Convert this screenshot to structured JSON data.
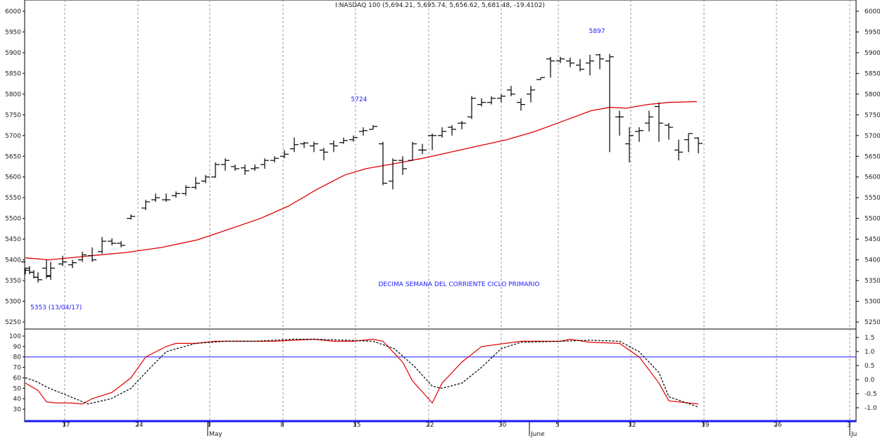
{
  "chart_data": [
    {
      "type": "ohlc",
      "title": "I:NASDAQ 100 (5,694.21, 5,695.74, 5,656.62, 5,681.48, -19.4102)",
      "ylim": [
        5200,
        6010
      ],
      "yticks": [
        5250,
        5300,
        5350,
        5400,
        5450,
        5500,
        5550,
        5600,
        5650,
        5700,
        5750,
        5800,
        5850,
        5900,
        5950,
        6000
      ],
      "grid": true,
      "colors": {
        "bars": "#000000",
        "moving_average": "#e00000"
      },
      "bars": [
        [
          36,
          5395,
          5380,
          5365,
          5375
        ],
        [
          42,
          5380,
          5385,
          5365,
          5370
        ],
        [
          48,
          5370,
          5375,
          5355,
          5358
        ],
        [
          54,
          5358,
          5370,
          5345,
          5352
        ],
        [
          66,
          5380,
          5400,
          5355,
          5360
        ],
        [
          72,
          5362,
          5395,
          5352,
          5380
        ],
        [
          89,
          5390,
          5410,
          5385,
          5395
        ],
        [
          103,
          5388,
          5400,
          5380,
          5393
        ],
        [
          117,
          5400,
          5420,
          5395,
          5412
        ],
        [
          131,
          5410,
          5430,
          5395,
          5400
        ],
        [
          145,
          5420,
          5455,
          5415,
          5445
        ],
        [
          159,
          5445,
          5452,
          5435,
          5440
        ],
        [
          172,
          5440,
          5445,
          5430,
          5435
        ],
        [
          186,
          5500,
          5510,
          5497,
          5505
        ],
        [
          207,
          5525,
          5545,
          5520,
          5540
        ],
        [
          221,
          5545,
          5560,
          5540,
          5550
        ],
        [
          236,
          5545,
          5560,
          5540,
          5545
        ],
        [
          250,
          5555,
          5565,
          5550,
          5560
        ],
        [
          264,
          5560,
          5580,
          5555,
          5575
        ],
        [
          278,
          5575,
          5600,
          5570,
          5585
        ],
        [
          292,
          5590,
          5605,
          5585,
          5600
        ],
        [
          306,
          5600,
          5635,
          5598,
          5630
        ],
        [
          320,
          5630,
          5645,
          5615,
          5640
        ],
        [
          334,
          5625,
          5630,
          5615,
          5620
        ],
        [
          348,
          5622,
          5630,
          5605,
          5615
        ],
        [
          362,
          5620,
          5630,
          5615,
          5622
        ],
        [
          376,
          5630,
          5645,
          5620,
          5640
        ],
        [
          390,
          5640,
          5650,
          5635,
          5645
        ],
        [
          404,
          5650,
          5665,
          5645,
          5655
        ],
        [
          418,
          5668,
          5695,
          5660,
          5678
        ],
        [
          432,
          5680,
          5685,
          5670,
          5682
        ],
        [
          446,
          5675,
          5685,
          5660,
          5680
        ],
        [
          460,
          5665,
          5670,
          5640,
          5660
        ],
        [
          474,
          5680,
          5688,
          5660,
          5675
        ],
        [
          488,
          5683,
          5695,
          5680,
          5688
        ],
        [
          502,
          5690,
          5700,
          5685,
          5695
        ],
        [
          516,
          5710,
          5720,
          5700,
          5712
        ],
        [
          530,
          5715,
          5725,
          5715,
          5722
        ],
        [
          544,
          5680,
          5685,
          5580,
          5585
        ],
        [
          558,
          5590,
          5645,
          5570,
          5640
        ],
        [
          572,
          5640,
          5650,
          5605,
          5620
        ],
        [
          586,
          5640,
          5685,
          5640,
          5680
        ],
        [
          600,
          5665,
          5680,
          5655,
          5665
        ],
        [
          614,
          5700,
          5705,
          5665,
          5700
        ],
        [
          628,
          5700,
          5720,
          5695,
          5710
        ],
        [
          642,
          5720,
          5725,
          5700,
          5715
        ],
        [
          656,
          5730,
          5735,
          5715,
          5730
        ],
        [
          670,
          5745,
          5795,
          5740,
          5790
        ],
        [
          684,
          5775,
          5790,
          5770,
          5780
        ],
        [
          698,
          5780,
          5795,
          5775,
          5790
        ],
        [
          712,
          5790,
          5800,
          5780,
          5795
        ],
        [
          726,
          5810,
          5820,
          5795,
          5800
        ],
        [
          740,
          5780,
          5790,
          5760,
          5775
        ],
        [
          754,
          5800,
          5820,
          5780,
          5810
        ],
        [
          768,
          5835,
          5840,
          5835,
          5840
        ],
        [
          782,
          5885,
          5890,
          5840,
          5880
        ],
        [
          796,
          5880,
          5890,
          5875,
          5885
        ],
        [
          810,
          5880,
          5888,
          5865,
          5875
        ],
        [
          824,
          5870,
          5885,
          5855,
          5860
        ],
        [
          838,
          5875,
          5895,
          5845,
          5880
        ],
        [
          852,
          5895,
          5897,
          5860,
          5885
        ],
        [
          866,
          5880,
          5897,
          5660,
          5890
        ],
        [
          880,
          5745,
          5760,
          5700,
          5745
        ],
        [
          894,
          5680,
          5720,
          5635,
          5700
        ],
        [
          908,
          5710,
          5720,
          5685,
          5712
        ],
        [
          922,
          5730,
          5760,
          5710,
          5745
        ],
        [
          936,
          5770,
          5780,
          5685,
          5730
        ],
        [
          950,
          5725,
          5730,
          5690,
          5720
        ],
        [
          964,
          5665,
          5690,
          5640,
          5660
        ],
        [
          978,
          5690,
          5705,
          5660,
          5705
        ],
        [
          992,
          5694,
          5696,
          5657,
          5681
        ]
      ],
      "moving_average": [
        [
          36,
          5405
        ],
        [
          70,
          5400
        ],
        [
          130,
          5410
        ],
        [
          180,
          5418
        ],
        [
          230,
          5430
        ],
        [
          280,
          5448
        ],
        [
          310,
          5465
        ],
        [
          370,
          5500
        ],
        [
          410,
          5530
        ],
        [
          450,
          5570
        ],
        [
          490,
          5605
        ],
        [
          520,
          5620
        ],
        [
          560,
          5632
        ],
        [
          600,
          5645
        ],
        [
          640,
          5660
        ],
        [
          680,
          5675
        ],
        [
          720,
          5690
        ],
        [
          760,
          5710
        ],
        [
          800,
          5735
        ],
        [
          840,
          5760
        ],
        [
          866,
          5768
        ],
        [
          890,
          5766
        ],
        [
          920,
          5775
        ],
        [
          950,
          5780
        ],
        [
          990,
          5782
        ]
      ]
    },
    {
      "type": "line",
      "ylim": [
        20,
        105
      ],
      "yticks_left": [
        30,
        40,
        50,
        60,
        70,
        80,
        90,
        100
      ],
      "yticks_right": [
        "1.5",
        "1.0",
        "0.5",
        "0.0",
        "-0.5",
        "-1.0"
      ],
      "yticks_right_values": [
        1.5,
        1.0,
        0.5,
        0.0,
        -0.5,
        -1.0
      ],
      "yticks_right_range": [
        -1.5,
        2.2
      ],
      "reference_levels": [
        100,
        80
      ],
      "series": [
        {
          "color": "#e00000",
          "dash": false,
          "points": [
            [
              36,
              55
            ],
            [
              54,
              48
            ],
            [
              66,
              37
            ],
            [
              80,
              36
            ],
            [
              100,
              36
            ],
            [
              117,
              35
            ],
            [
              131,
              40
            ],
            [
              159,
              46
            ],
            [
              186,
              60
            ],
            [
              207,
              80
            ],
            [
              236,
              90
            ],
            [
              250,
              93
            ],
            [
              278,
              93
            ],
            [
              306,
              95
            ],
            [
              362,
              95
            ],
            [
              390,
              95
            ],
            [
              446,
              97
            ],
            [
              474,
              95
            ],
            [
              502,
              95
            ],
            [
              530,
              97
            ],
            [
              544,
              95
            ],
            [
              572,
              75
            ],
            [
              586,
              57
            ],
            [
              614,
              36
            ],
            [
              628,
              55
            ],
            [
              656,
              75
            ],
            [
              684,
              90
            ],
            [
              740,
              95
            ],
            [
              768,
              95
            ],
            [
              796,
              95
            ],
            [
              810,
              97
            ],
            [
              838,
              94
            ],
            [
              880,
              93
            ],
            [
              908,
              80
            ],
            [
              936,
              55
            ],
            [
              950,
              38
            ],
            [
              992,
              35
            ]
          ]
        },
        {
          "color": "#000000",
          "dash": true,
          "points": [
            [
              36,
              60
            ],
            [
              50,
              57
            ],
            [
              70,
              50
            ],
            [
              100,
              42
            ],
            [
              125,
              35
            ],
            [
              158,
              40
            ],
            [
              186,
              50
            ],
            [
              214,
              70
            ],
            [
              236,
              85
            ],
            [
              278,
              93
            ],
            [
              320,
              95
            ],
            [
              362,
              95
            ],
            [
              418,
              97
            ],
            [
              446,
              97
            ],
            [
              490,
              96
            ],
            [
              530,
              95
            ],
            [
              560,
              88
            ],
            [
              590,
              70
            ],
            [
              614,
              52
            ],
            [
              628,
              50
            ],
            [
              656,
              55
            ],
            [
              684,
              70
            ],
            [
              712,
              88
            ],
            [
              740,
              94
            ],
            [
              796,
              95
            ],
            [
              838,
              96
            ],
            [
              880,
              95
            ],
            [
              908,
              85
            ],
            [
              936,
              65
            ],
            [
              950,
              42
            ],
            [
              992,
              32
            ]
          ]
        }
      ]
    }
  ],
  "x_axis": {
    "day_ticks": [
      [
        92,
        "17"
      ],
      [
        196,
        "24"
      ],
      [
        298,
        "1"
      ],
      [
        402,
        "8"
      ],
      [
        505,
        "15"
      ],
      [
        609,
        "22"
      ],
      [
        712,
        "30"
      ],
      [
        793,
        "5"
      ],
      [
        896,
        "12"
      ],
      [
        1000,
        "19"
      ],
      [
        1103,
        "26"
      ],
      [
        1207,
        "3"
      ]
    ],
    "month_labels": [
      [
        298,
        "May"
      ],
      [
        755,
        "June"
      ],
      [
        1210,
        "Ju"
      ]
    ]
  },
  "annotations": {
    "peak_5724": "5724",
    "peak_5897": "5897",
    "low_5353": "5353 (13/04/17)",
    "cycle_note": "DECIMA SEMANA DEL CORRIENTE CICLO PRIMARIO"
  }
}
